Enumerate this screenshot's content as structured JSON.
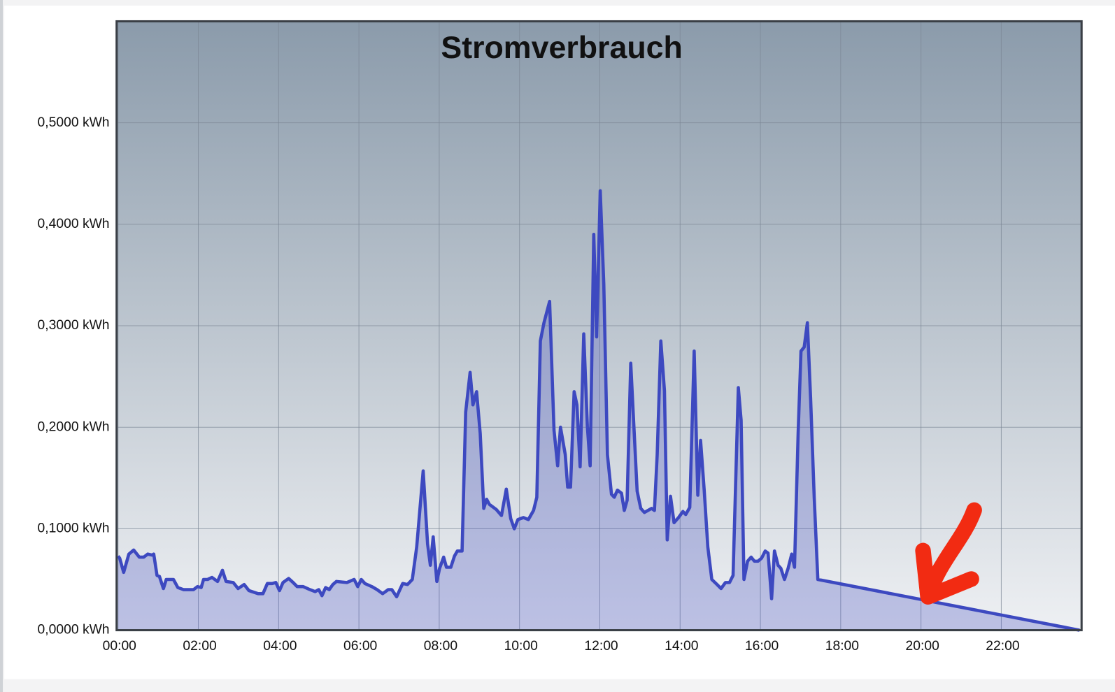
{
  "chart_data": {
    "type": "area",
    "title": "Stromverbrauch",
    "x": [
      0,
      0.04,
      0.14,
      0.27,
      0.39,
      0.53,
      0.64,
      0.74,
      0.85,
      0.89,
      0.97,
      1.03,
      1.13,
      1.2,
      1.38,
      1.49,
      1.63,
      1.88,
      1.98,
      2.07,
      2.13,
      2.23,
      2.34,
      2.48,
      2.6,
      2.69,
      2.87,
      2.99,
      3.14,
      3.26,
      3.49,
      3.61,
      3.72,
      3.84,
      3.93,
      4.02,
      4.11,
      4.25,
      4.36,
      4.46,
      4.61,
      4.78,
      4.91,
      5,
      5.08,
      5.17,
      5.26,
      5.35,
      5.44,
      5.7,
      5.88,
      5.97,
      6.06,
      6.15,
      6.32,
      6.45,
      6.59,
      6.73,
      6.82,
      6.94,
      7.09,
      7.21,
      7.33,
      7.44,
      7.6,
      7.71,
      7.78,
      7.85,
      7.94,
      8.01,
      8.11,
      8.18,
      8.29,
      8.38,
      8.45,
      8.57,
      8.66,
      8.77,
      8.84,
      8.93,
      9.02,
      9.11,
      9.18,
      9.25,
      9.42,
      9.55,
      9.67,
      9.78,
      9.87,
      9.96,
      10.1,
      10.22,
      10.35,
      10.43,
      10.52,
      10.61,
      10.75,
      10.86,
      10.95,
      11.02,
      11.14,
      11.2,
      11.27,
      11.36,
      11.43,
      11.51,
      11.6,
      11.69,
      11.76,
      11.85,
      11.92,
      12.01,
      12.1,
      12.19,
      12.29,
      12.36,
      12.44,
      12.54,
      12.61,
      12.68,
      12.77,
      12.84,
      12.93,
      13.02,
      13.11,
      13.2,
      13.29,
      13.36,
      13.43,
      13.52,
      13.61,
      13.68,
      13.76,
      13.85,
      13.96,
      14.07,
      14.14,
      14.24,
      14.35,
      14.44,
      14.51,
      14.6,
      14.69,
      14.79,
      14.92,
      15.02,
      15.13,
      15.23,
      15.32,
      15.45,
      15.52,
      15.59,
      15.68,
      15.77,
      15.85,
      15.94,
      16.03,
      16.12,
      16.19,
      16.28,
      16.35,
      16.44,
      16.51,
      16.6,
      16.69,
      16.78,
      16.85,
      16.94,
      17.01,
      17.09,
      17.17,
      17.25,
      17.34,
      17.43,
      23.95
    ],
    "values": [
      0.073,
      0.071,
      0.057,
      0.075,
      0.079,
      0.072,
      0.072,
      0.075,
      0.074,
      0.075,
      0.054,
      0.053,
      0.041,
      0.05,
      0.05,
      0.042,
      0.04,
      0.04,
      0.043,
      0.042,
      0.05,
      0.05,
      0.052,
      0.048,
      0.059,
      0.048,
      0.047,
      0.041,
      0.045,
      0.039,
      0.036,
      0.036,
      0.046,
      0.046,
      0.047,
      0.039,
      0.047,
      0.051,
      0.047,
      0.043,
      0.043,
      0.04,
      0.038,
      0.04,
      0.034,
      0.042,
      0.04,
      0.045,
      0.048,
      0.047,
      0.05,
      0.043,
      0.05,
      0.046,
      0.043,
      0.04,
      0.036,
      0.04,
      0.04,
      0.033,
      0.046,
      0.045,
      0.05,
      0.082,
      0.157,
      0.085,
      0.064,
      0.092,
      0.048,
      0.061,
      0.072,
      0.062,
      0.062,
      0.073,
      0.078,
      0.078,
      0.215,
      0.254,
      0.222,
      0.235,
      0.194,
      0.12,
      0.129,
      0.124,
      0.119,
      0.113,
      0.139,
      0.11,
      0.1,
      0.109,
      0.111,
      0.109,
      0.118,
      0.131,
      0.285,
      0.303,
      0.324,
      0.197,
      0.162,
      0.2,
      0.173,
      0.141,
      0.141,
      0.235,
      0.222,
      0.161,
      0.292,
      0.201,
      0.162,
      0.39,
      0.289,
      0.433,
      0.341,
      0.173,
      0.134,
      0.131,
      0.138,
      0.135,
      0.118,
      0.128,
      0.263,
      0.208,
      0.137,
      0.12,
      0.116,
      0.118,
      0.12,
      0.118,
      0.173,
      0.285,
      0.236,
      0.089,
      0.132,
      0.106,
      0.111,
      0.117,
      0.114,
      0.121,
      0.275,
      0.133,
      0.187,
      0.138,
      0.082,
      0.05,
      0.045,
      0.041,
      0.047,
      0.047,
      0.054,
      0.239,
      0.207,
      0.05,
      0.068,
      0.072,
      0.068,
      0.068,
      0.071,
      0.078,
      0.076,
      0.031,
      0.078,
      0.064,
      0.061,
      0.05,
      0.061,
      0.075,
      0.062,
      0.194,
      0.275,
      0.279,
      0.303,
      0.229,
      0.131,
      0.05,
      0
    ],
    "color": "#3d49c0",
    "xlim": [
      0,
      24
    ],
    "xticks": [
      {
        "value": 0,
        "label": "00:00"
      },
      {
        "value": 2,
        "label": "02:00"
      },
      {
        "value": 4,
        "label": "04:00"
      },
      {
        "value": 6,
        "label": "06:00"
      },
      {
        "value": 8,
        "label": "08:00"
      },
      {
        "value": 10,
        "label": "10:00"
      },
      {
        "value": 12,
        "label": "12:00"
      },
      {
        "value": 14,
        "label": "14:00"
      },
      {
        "value": 16,
        "label": "16:00"
      },
      {
        "value": 18,
        "label": "18:00"
      },
      {
        "value": 20,
        "label": "20:00"
      },
      {
        "value": 22,
        "label": "22:00"
      }
    ],
    "ylim": [
      0,
      0.6
    ],
    "yticks": [
      {
        "value": 0,
        "label": "0,0000 kWh"
      },
      {
        "value": 0.1,
        "label": "0,1000 kWh"
      },
      {
        "value": 0.2,
        "label": "0,2000 kWh"
      },
      {
        "value": 0.3,
        "label": "0,3000 kWh"
      },
      {
        "value": 0.4,
        "label": "0,4000 kWh"
      },
      {
        "value": 0.5,
        "label": "0,5000 kWh"
      }
    ],
    "grid": true
  }
}
